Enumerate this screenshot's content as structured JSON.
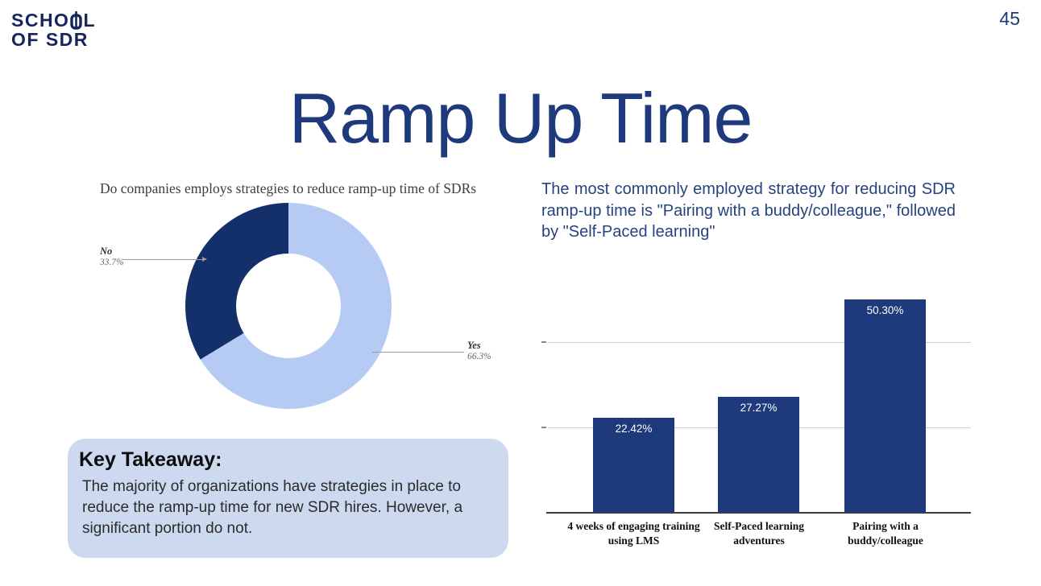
{
  "page_number": "45",
  "logo": {
    "line1_part1": "SCHO",
    "line1_part2": "L",
    "line2": "OF SDR"
  },
  "title": "Ramp Up Time",
  "insight": "The most commonly employed strategy for reducing SDR ramp-up time is \"Pairing with a buddy/colleague,\" followed by \"Self-Paced learning\"",
  "takeaway": {
    "heading": "Key Takeaway:",
    "body": "The majority of organizations have strategies in place to reduce the ramp-up time for new SDR hires. However, a significant portion do not."
  },
  "colors": {
    "navy": "#1e3a7c",
    "pie_dark": "#14306b",
    "pie_light": "#b6cbf3",
    "takeaway_bg": "#cdd9ef"
  },
  "chart_data": [
    {
      "type": "pie",
      "donut": true,
      "title": "Do companies employs strategies to reduce ramp-up time of SDRs",
      "labels": [
        "Yes",
        "No"
      ],
      "values": [
        66.3,
        33.7
      ],
      "pct_labels": [
        "66.3%",
        "33.7%"
      ],
      "colors": [
        "#b6cbf3",
        "#14306b"
      ],
      "legend_position": "outside-callouts"
    },
    {
      "type": "bar",
      "categories": [
        "4 weeks of engaging training\nusing LMS",
        "Self-Paced learning\nadventures",
        "Pairing with a\nbuddy/colleague"
      ],
      "values": [
        22.42,
        27.27,
        50.3
      ],
      "value_labels": [
        "22.42%",
        "27.27%",
        "50.30%"
      ],
      "bar_color": "#1e3a7c",
      "ylim": [
        0,
        55
      ],
      "gridlines_y": [
        20,
        40
      ],
      "grid": true,
      "xlabel": "",
      "ylabel": "",
      "legend_position": "none"
    }
  ]
}
